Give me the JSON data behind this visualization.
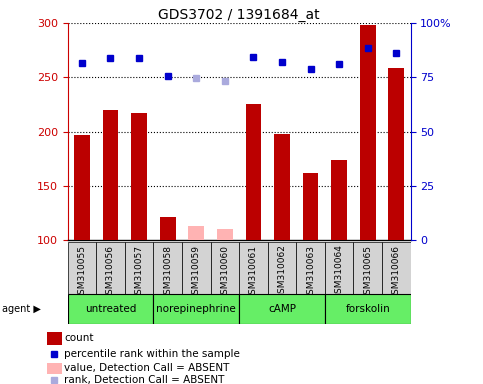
{
  "title": "GDS3702 / 1391684_at",
  "samples": [
    "GSM310055",
    "GSM310056",
    "GSM310057",
    "GSM310058",
    "GSM310059",
    "GSM310060",
    "GSM310061",
    "GSM310062",
    "GSM310063",
    "GSM310064",
    "GSM310065",
    "GSM310066"
  ],
  "counts": [
    197,
    220,
    217,
    121,
    null,
    null,
    225,
    198,
    162,
    174,
    298,
    259
  ],
  "counts_absent": [
    null,
    null,
    null,
    null,
    113,
    110,
    null,
    null,
    null,
    null,
    null,
    null
  ],
  "percentile_ranks": [
    263,
    268,
    268,
    251,
    null,
    null,
    269,
    264,
    258,
    262,
    277,
    272
  ],
  "percentile_ranks_absent": [
    null,
    null,
    null,
    null,
    249,
    247,
    null,
    null,
    null,
    null,
    null,
    null
  ],
  "agents": [
    {
      "label": "untreated",
      "start": 0,
      "end": 3
    },
    {
      "label": "norepinephrine",
      "start": 3,
      "end": 6
    },
    {
      "label": "cAMP",
      "start": 6,
      "end": 9
    },
    {
      "label": "forskolin",
      "start": 9,
      "end": 12
    }
  ],
  "ylim_left": [
    100,
    300
  ],
  "ylim_right": [
    0,
    100
  ],
  "yticks_left": [
    100,
    150,
    200,
    250,
    300
  ],
  "yticks_right": [
    0,
    25,
    50,
    75,
    100
  ],
  "ytick_labels_right": [
    "0",
    "25",
    "50",
    "75",
    "100%"
  ],
  "bar_color": "#BB0000",
  "bar_color_absent": "#FFB3B3",
  "dot_color": "#0000CC",
  "dot_color_absent": "#AAAADD",
  "grid_color": "#000000",
  "sample_bg_color": "#D3D3D3",
  "agent_bg_color": "#66EE66",
  "left_axis_color": "#CC0000",
  "right_axis_color": "#0000CC",
  "bar_width": 0.55,
  "dot_size": 5
}
